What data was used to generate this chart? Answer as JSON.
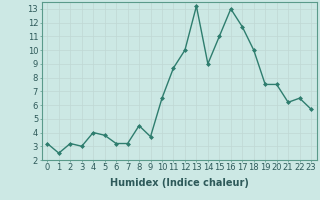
{
  "x": [
    0,
    1,
    2,
    3,
    4,
    5,
    6,
    7,
    8,
    9,
    10,
    11,
    12,
    13,
    14,
    15,
    16,
    17,
    18,
    19,
    20,
    21,
    22,
    23
  ],
  "y": [
    3.2,
    2.5,
    3.2,
    3.0,
    4.0,
    3.8,
    3.2,
    3.2,
    4.5,
    3.7,
    6.5,
    8.7,
    10.0,
    13.2,
    9.0,
    11.0,
    13.0,
    11.7,
    10.0,
    7.5,
    7.5,
    6.2,
    6.5,
    5.7
  ],
  "xlabel": "Humidex (Indice chaleur)",
  "line_color": "#2e7d6e",
  "marker": "D",
  "marker_size": 2.0,
  "background_color": "#cce8e4",
  "grid_color": "#c0d8d4",
  "ylim": [
    2,
    13.5
  ],
  "xlim": [
    -0.5,
    23.5
  ],
  "yticks": [
    2,
    3,
    4,
    5,
    6,
    7,
    8,
    9,
    10,
    11,
    12,
    13
  ],
  "xticks": [
    0,
    1,
    2,
    3,
    4,
    5,
    6,
    7,
    8,
    9,
    10,
    11,
    12,
    13,
    14,
    15,
    16,
    17,
    18,
    19,
    20,
    21,
    22,
    23
  ],
  "linewidth": 1.0,
  "xlabel_fontsize": 7,
  "tick_fontsize": 6,
  "fig_bg_color": "#cce8e4",
  "spine_color": "#5a9a8a",
  "tick_color": "#2e5a5a",
  "label_color": "#2e5a5a"
}
